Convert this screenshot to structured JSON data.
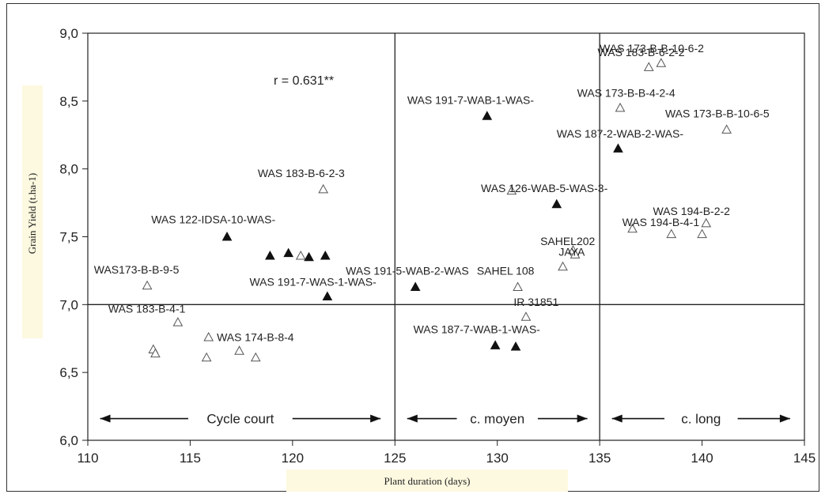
{
  "chart_data": {
    "type": "scatter",
    "xlabel": "Plant duration (days)",
    "ylabel": "Grain Yield (t.ha-1)",
    "xlim": [
      110,
      145
    ],
    "ylim": [
      6.0,
      9.0
    ],
    "x_ticks": [
      "110",
      "115",
      "120",
      "125",
      "130",
      "135",
      "140",
      "145"
    ],
    "y_ticks": [
      "6,0",
      "6,5",
      "7,0",
      "7,5",
      "8,0",
      "8,5",
      "9,0"
    ],
    "reference_lines": {
      "vertical": [
        125,
        135
      ],
      "horizontal": [
        7.0
      ]
    },
    "correlation": "r = 0.631**",
    "periods": [
      {
        "label": "Cycle court",
        "from": 110.6,
        "to": 124.3
      },
      {
        "label": "c. moyen",
        "from": 125.6,
        "to": 134.4
      },
      {
        "label": "c. long",
        "from": 135.6,
        "to": 144.3
      }
    ],
    "series": [
      {
        "marker": "filled-triangle",
        "points": [
          {
            "x": 116.8,
            "y": 7.5
          },
          {
            "x": 118.9,
            "y": 7.36
          },
          {
            "x": 119.8,
            "y": 7.38
          },
          {
            "x": 120.8,
            "y": 7.35
          },
          {
            "x": 121.6,
            "y": 7.36
          },
          {
            "x": 121.7,
            "y": 7.06
          },
          {
            "x": 126.0,
            "y": 7.13
          },
          {
            "x": 129.5,
            "y": 8.39
          },
          {
            "x": 132.9,
            "y": 7.74
          },
          {
            "x": 129.9,
            "y": 6.7
          },
          {
            "x": 130.9,
            "y": 6.69
          },
          {
            "x": 135.9,
            "y": 8.15
          }
        ]
      },
      {
        "marker": "open-triangle",
        "points": [
          {
            "x": 112.9,
            "y": 7.14
          },
          {
            "x": 113.2,
            "y": 6.67
          },
          {
            "x": 113.3,
            "y": 6.64
          },
          {
            "x": 114.4,
            "y": 6.87
          },
          {
            "x": 115.9,
            "y": 6.76
          },
          {
            "x": 115.8,
            "y": 6.61
          },
          {
            "x": 117.4,
            "y": 6.66
          },
          {
            "x": 118.2,
            "y": 6.61
          },
          {
            "x": 120.4,
            "y": 7.36
          },
          {
            "x": 121.5,
            "y": 7.85
          },
          {
            "x": 130.7,
            "y": 7.84
          },
          {
            "x": 131.0,
            "y": 7.13
          },
          {
            "x": 131.4,
            "y": 6.91
          },
          {
            "x": 133.2,
            "y": 7.28
          },
          {
            "x": 133.7,
            "y": 7.4
          },
          {
            "x": 133.8,
            "y": 7.37
          },
          {
            "x": 136.0,
            "y": 8.45
          },
          {
            "x": 136.6,
            "y": 7.56
          },
          {
            "x": 137.4,
            "y": 8.75
          },
          {
            "x": 138.0,
            "y": 8.78
          },
          {
            "x": 138.5,
            "y": 7.52
          },
          {
            "x": 140.0,
            "y": 7.52
          },
          {
            "x": 140.2,
            "y": 7.6
          },
          {
            "x": 141.2,
            "y": 8.29
          }
        ]
      }
    ],
    "labels": [
      {
        "text": "WAS 122-IDSA-10-WAS-",
        "x": 113.1,
        "y": 7.6
      },
      {
        "text": "WAS 183-B-6-2-3",
        "x": 118.3,
        "y": 7.94
      },
      {
        "text": "WAS173-B-B-9-5",
        "x": 110.3,
        "y": 7.23
      },
      {
        "text": "WAS 191-7-WAS-1-WAS-",
        "x": 117.9,
        "y": 7.14
      },
      {
        "text": "WAS 183-B-4-1",
        "x": 111.0,
        "y": 6.94
      },
      {
        "text": "WAS 174-B-8-4",
        "x": 116.3,
        "y": 6.73
      },
      {
        "text": "WAS 191-5-WAB-2-WAS",
        "x": 122.6,
        "y": 7.22
      },
      {
        "text": "SAHEL 108",
        "x": 129.0,
        "y": 7.22
      },
      {
        "text": "WAS 191-7-WAB-1-WAS-",
        "x": 125.6,
        "y": 8.48
      },
      {
        "text": "WAS 126-WAB-5-WAS-3-",
        "x": 129.2,
        "y": 7.83
      },
      {
        "text": "SAHEL202",
        "x": 132.1,
        "y": 7.44
      },
      {
        "text": "JAYA",
        "x": 133.0,
        "y": 7.36
      },
      {
        "text": "IR 31851",
        "x": 130.8,
        "y": 6.99
      },
      {
        "text": "WAS 187-7-WAB-1-WAS-",
        "x": 125.9,
        "y": 6.79
      },
      {
        "text": "WAS 173-B-B-10-6-2",
        "x": 135.0,
        "y": 8.86
      },
      {
        "text": "WAS 183-B-6-2-2",
        "x": 134.9,
        "y": 8.83
      },
      {
        "text": "WAS 173-B-B-4-2-4",
        "x": 133.9,
        "y": 8.53
      },
      {
        "text": "WAS 173-B-B-10-6-5",
        "x": 138.2,
        "y": 8.38
      },
      {
        "text": "WAS 187-2-WAB-2-WAS-",
        "x": 132.9,
        "y": 8.23
      },
      {
        "text": "WAS 194-B-2-2",
        "x": 137.6,
        "y": 7.66
      },
      {
        "text": "WAS 194-B-4-1",
        "x": 136.1,
        "y": 7.58
      }
    ]
  }
}
